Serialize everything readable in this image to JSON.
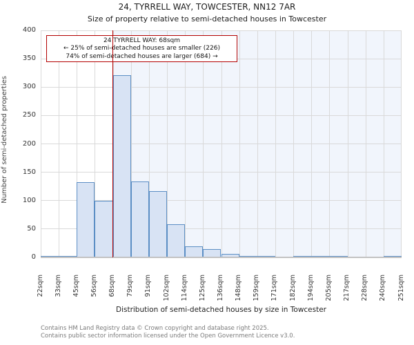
{
  "title": "24, TYRRELL WAY, TOWCESTER, NN12 7AR",
  "subtitle": "Size of property relative to semi-detached houses in Towcester",
  "annotation": {
    "line1": "24 TYRRELL WAY: 68sqm",
    "line2": "← 25% of semi-detached houses are smaller (226)",
    "line3": "74% of semi-detached houses are larger (684) →"
  },
  "chart_data": {
    "type": "bar",
    "title": "24, TYRRELL WAY, TOWCESTER, NN12 7AR",
    "subtitle": "Size of property relative to semi-detached houses in Towcester",
    "xlabel": "Distribution of semi-detached houses by size in Towcester",
    "ylabel": "Number of semi-detached properties",
    "categories": [
      "22sqm",
      "33sqm",
      "45sqm",
      "56sqm",
      "68sqm",
      "79sqm",
      "91sqm",
      "102sqm",
      "114sqm",
      "125sqm",
      "136sqm",
      "148sqm",
      "159sqm",
      "171sqm",
      "182sqm",
      "194sqm",
      "205sqm",
      "217sqm",
      "228sqm",
      "240sqm",
      "251sqm"
    ],
    "values": [
      1,
      2,
      133,
      100,
      321,
      134,
      117,
      58,
      20,
      15,
      6,
      1,
      2,
      0,
      1,
      1,
      1,
      0,
      0,
      2
    ],
    "ylim": [
      0,
      400
    ],
    "yticks": [
      0,
      50,
      100,
      150,
      200,
      250,
      300,
      350,
      400
    ],
    "grid": true,
    "legend": false,
    "marker_value": "68sqm",
    "marker_bin_index": 4,
    "colors": {
      "bar_fill": "#d8e3f4",
      "bar_edge": "#5b8ec4",
      "shade": "#f1f5fc",
      "grid": "#d9d9d9",
      "axis": "#c2c2c2",
      "marker": "#b30000"
    }
  },
  "footer": {
    "line1": "Contains HM Land Registry data © Crown copyright and database right 2025.",
    "line2": "Contains public sector information licensed under the Open Government Licence v3.0."
  }
}
